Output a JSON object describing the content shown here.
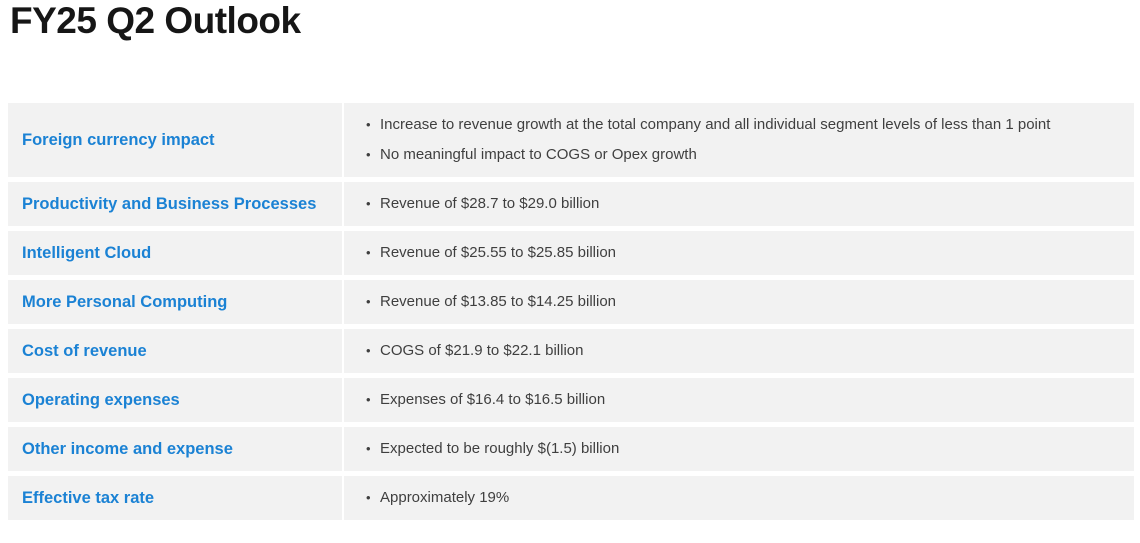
{
  "page": {
    "title": "FY25 Q2 Outlook"
  },
  "colors": {
    "label_blue": "#1b82d4",
    "row_bg": "#f2f2f2",
    "body_text": "#3f3f3f",
    "title_text": "#161616",
    "divider": "#ffffff"
  },
  "table": {
    "rows": [
      {
        "label": "Foreign currency impact",
        "bullets": [
          "Increase to revenue growth at the total company and all individual segment levels of less than 1 point",
          "No meaningful impact to COGS or Opex growth"
        ]
      },
      {
        "label": "Productivity and Business Processes",
        "bullets": [
          "Revenue of $28.7 to $29.0 billion"
        ]
      },
      {
        "label": "Intelligent Cloud",
        "bullets": [
          "Revenue of $25.55 to $25.85 billion"
        ]
      },
      {
        "label": "More Personal Computing",
        "bullets": [
          "Revenue of $13.85 to $14.25 billion"
        ]
      },
      {
        "label": "Cost of revenue",
        "bullets": [
          "COGS of $21.9 to $22.1 billion"
        ]
      },
      {
        "label": "Operating expenses",
        "bullets": [
          "Expenses of $16.4 to $16.5 billion"
        ]
      },
      {
        "label": "Other income and expense",
        "bullets": [
          "Expected to be roughly $(1.5) billion"
        ]
      },
      {
        "label": "Effective tax rate",
        "bullets": [
          "Approximately 19%"
        ]
      }
    ]
  }
}
